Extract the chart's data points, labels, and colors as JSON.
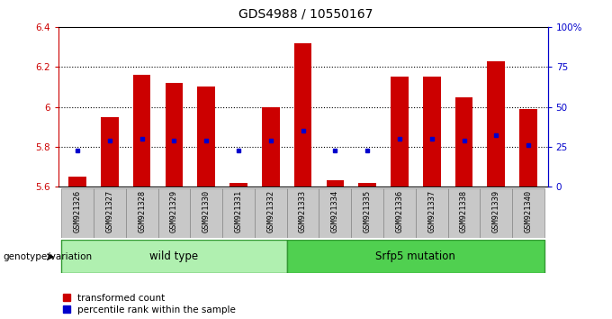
{
  "title": "GDS4988 / 10550167",
  "samples": [
    "GSM921326",
    "GSM921327",
    "GSM921328",
    "GSM921329",
    "GSM921330",
    "GSM921331",
    "GSM921332",
    "GSM921333",
    "GSM921334",
    "GSM921335",
    "GSM921336",
    "GSM921337",
    "GSM921338",
    "GSM921339",
    "GSM921340"
  ],
  "bar_values": [
    5.65,
    5.95,
    6.16,
    6.12,
    6.1,
    5.62,
    6.0,
    6.32,
    5.63,
    5.62,
    6.15,
    6.15,
    6.05,
    6.23,
    5.99
  ],
  "blue_values": [
    5.78,
    5.83,
    5.84,
    5.83,
    5.83,
    5.78,
    5.83,
    5.88,
    5.78,
    5.78,
    5.84,
    5.84,
    5.83,
    5.86,
    5.81
  ],
  "ymin": 5.6,
  "ymax": 6.4,
  "bar_color": "#cc0000",
  "blue_color": "#0000cc",
  "bar_bottom": 5.6,
  "grid_values": [
    5.8,
    6.0,
    6.2
  ],
  "right_tick_positions": [
    5.6,
    5.8,
    6.0,
    6.2,
    6.4
  ],
  "right_tick_labels": [
    "0",
    "25",
    "50",
    "75",
    "100%"
  ],
  "left_tick_labels": [
    "5.6",
    "5.8",
    "6",
    "6.2",
    "6.4"
  ],
  "left_tick_positions": [
    5.6,
    5.8,
    6.0,
    6.2,
    6.4
  ],
  "group1_label": "wild type",
  "group2_label": "Srfp5 mutation",
  "genotype_label": "genotype/variation",
  "legend1": "transformed count",
  "legend2": "percentile rank within the sample",
  "wild_type_count": 7,
  "left_tick_color": "#cc0000",
  "right_tick_color": "#0000cc",
  "bar_width": 0.55,
  "group1_bg": "#b0f0b0",
  "group2_bg": "#50d050",
  "xticklabel_bg": "#c8c8c8"
}
